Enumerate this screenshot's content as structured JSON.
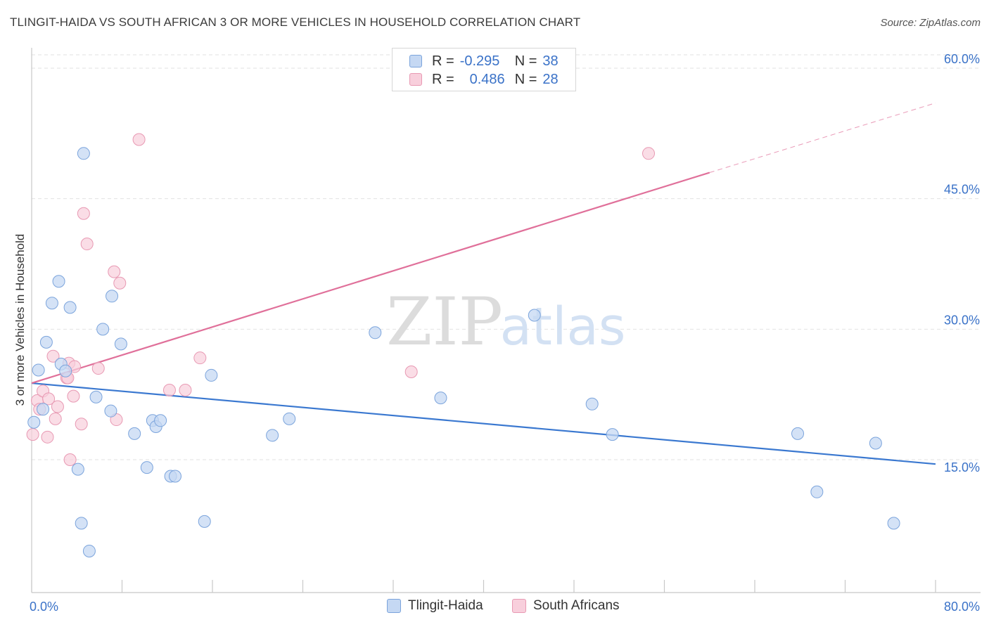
{
  "title": "TLINGIT-HAIDA VS SOUTH AFRICAN 3 OR MORE VEHICLES IN HOUSEHOLD CORRELATION CHART",
  "source": "Source: ZipAtlas.com",
  "watermark": {
    "zip": "ZIP",
    "atlas": "atlas"
  },
  "legend": {
    "rows": [
      {
        "r_label": "R =",
        "r_value": "-0.295",
        "n_label": "N =",
        "n_value": "38"
      },
      {
        "r_label": "R =",
        "r_value": "0.486",
        "n_label": "N =",
        "n_value": "28"
      }
    ]
  },
  "bottom_legend": {
    "series1": "Tlingit-Haida",
    "series2": "South Africans"
  },
  "colors": {
    "blue_fill": "#c5d8f3",
    "blue_stroke": "#7ba4dc",
    "blue_line": "#3a78d0",
    "pink_fill": "#f8cfdc",
    "pink_stroke": "#e899b3",
    "pink_line": "#e0709a",
    "axis_label": "#3a72c8",
    "grid": "#e2e2e2"
  },
  "chart_data": {
    "type": "scatter",
    "title": "TLINGIT-HAIDA VS SOUTH AFRICAN 3 OR MORE VEHICLES IN HOUSEHOLD CORRELATION CHART",
    "xlabel": "",
    "ylabel": "3 or more Vehicles in Household",
    "xlim": [
      0,
      80
    ],
    "ylim": [
      0,
      65
    ],
    "x_tick_labels": [
      "0.0%",
      "80.0%"
    ],
    "y_ticks": [
      15,
      30,
      45,
      60
    ],
    "y_tick_labels": [
      "15.0%",
      "30.0%",
      "45.0%",
      "60.0%"
    ],
    "grid": true,
    "legend_position": "top-center",
    "series": [
      {
        "name": "Tlingit-Haida",
        "r": -0.295,
        "n": 38,
        "trend": {
          "x": [
            0,
            80
          ],
          "y": [
            23.8,
            14.5
          ]
        },
        "points": [
          [
            0.2,
            19.3
          ],
          [
            0.6,
            25.3
          ],
          [
            1.0,
            20.8
          ],
          [
            1.3,
            28.5
          ],
          [
            1.8,
            33.0
          ],
          [
            2.4,
            35.5
          ],
          [
            2.6,
            26.0
          ],
          [
            3.0,
            25.2
          ],
          [
            3.4,
            32.5
          ],
          [
            4.1,
            13.9
          ],
          [
            4.4,
            7.7
          ],
          [
            4.6,
            50.2
          ],
          [
            5.1,
            4.5
          ],
          [
            5.7,
            22.2
          ],
          [
            6.3,
            30.0
          ],
          [
            7.0,
            20.6
          ],
          [
            7.1,
            33.8
          ],
          [
            7.9,
            28.3
          ],
          [
            9.1,
            18.0
          ],
          [
            10.2,
            14.1
          ],
          [
            10.7,
            19.5
          ],
          [
            11.0,
            18.8
          ],
          [
            11.4,
            19.5
          ],
          [
            12.3,
            13.1
          ],
          [
            12.7,
            13.1
          ],
          [
            15.3,
            7.9
          ],
          [
            15.9,
            24.7
          ],
          [
            21.3,
            17.8
          ],
          [
            22.8,
            19.7
          ],
          [
            30.4,
            29.6
          ],
          [
            36.2,
            22.1
          ],
          [
            44.5,
            31.6
          ],
          [
            49.6,
            21.4
          ],
          [
            51.4,
            17.9
          ],
          [
            67.8,
            18.0
          ],
          [
            69.5,
            11.3
          ],
          [
            74.7,
            16.9
          ],
          [
            76.3,
            7.7
          ]
        ]
      },
      {
        "name": "South Africans",
        "r": 0.486,
        "n": 28,
        "trend": {
          "x": [
            0,
            60
          ],
          "y": [
            23.8,
            48.0
          ]
        },
        "trend_extension": {
          "x": [
            60,
            80
          ],
          "y": [
            48.0,
            56.0
          ]
        },
        "points": [
          [
            0.1,
            17.9
          ],
          [
            0.5,
            21.8
          ],
          [
            0.7,
            20.8
          ],
          [
            1.0,
            22.9
          ],
          [
            1.5,
            22.0
          ],
          [
            1.9,
            26.9
          ],
          [
            2.1,
            19.7
          ],
          [
            2.3,
            21.1
          ],
          [
            3.1,
            24.4
          ],
          [
            3.3,
            26.1
          ],
          [
            3.4,
            15.0
          ],
          [
            3.7,
            22.3
          ],
          [
            3.8,
            25.7
          ],
          [
            4.4,
            19.1
          ],
          [
            4.6,
            43.3
          ],
          [
            4.9,
            39.8
          ],
          [
            5.9,
            25.5
          ],
          [
            7.3,
            36.6
          ],
          [
            7.5,
            19.6
          ],
          [
            7.8,
            35.3
          ],
          [
            9.5,
            51.8
          ],
          [
            12.2,
            23.0
          ],
          [
            13.6,
            23.0
          ],
          [
            14.9,
            26.7
          ],
          [
            33.6,
            25.1
          ],
          [
            54.6,
            50.2
          ],
          [
            3.2,
            24.4
          ],
          [
            1.4,
            17.6
          ]
        ]
      }
    ]
  }
}
